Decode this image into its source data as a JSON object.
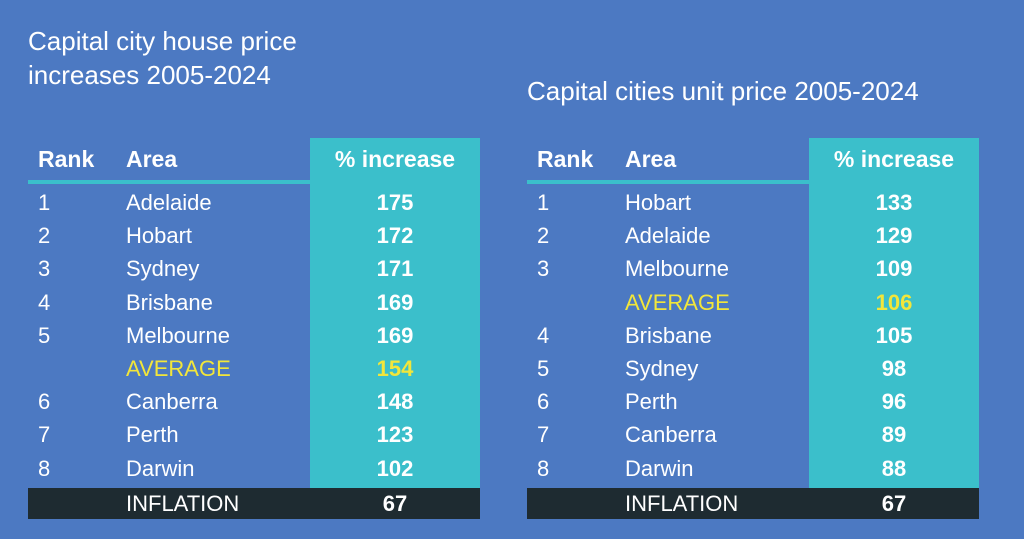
{
  "tables": [
    {
      "title": "Capital city house price increases 2005-2024",
      "headers": [
        "Rank",
        "Area",
        "% increase"
      ],
      "rows": [
        {
          "rank": "1",
          "area": "Adelaide",
          "value": 175
        },
        {
          "rank": "2",
          "area": "Hobart",
          "value": 172
        },
        {
          "rank": "3",
          "area": "Sydney",
          "value": 171
        },
        {
          "rank": "4",
          "area": "Brisbane",
          "value": 169
        },
        {
          "rank": "5",
          "area": "Melbourne",
          "value": 169
        },
        {
          "area": "AVERAGE",
          "value": 154,
          "highlight": true
        },
        {
          "rank": "6",
          "area": "Canberra",
          "value": 148
        },
        {
          "rank": "7",
          "area": "Perth",
          "value": 123
        },
        {
          "rank": "8",
          "area": "Darwin",
          "value": 102
        }
      ],
      "footer": {
        "area": "INFLATION",
        "value": 67
      }
    },
    {
      "title": "Capital cities unit price 2005-2024",
      "headers": [
        "Rank",
        "Area",
        "% increase"
      ],
      "rows": [
        {
          "rank": "1",
          "area": "Hobart",
          "value": 133
        },
        {
          "rank": "2",
          "area": "Adelaide",
          "value": 129
        },
        {
          "rank": "3",
          "area": "Melbourne",
          "value": 109
        },
        {
          "area": "AVERAGE",
          "value": 106,
          "highlight": true
        },
        {
          "rank": "4",
          "area": "Brisbane",
          "value": 105
        },
        {
          "rank": "5",
          "area": "Sydney",
          "value": 98
        },
        {
          "rank": "6",
          "area": "Perth",
          "value": 96
        },
        {
          "rank": "7",
          "area": "Canberra",
          "value": 89
        },
        {
          "rank": "8",
          "area": "Darwin",
          "value": 88
        }
      ],
      "footer": {
        "area": "INFLATION",
        "value": 67
      }
    }
  ]
}
